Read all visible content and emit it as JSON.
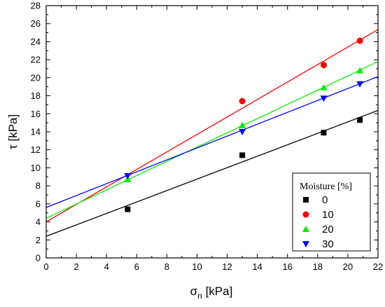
{
  "chart_data": {
    "type": "scatter",
    "xlabel": {
      "main": "σ",
      "sub": "n",
      "unit": " [kPa]"
    },
    "ylabel": "τ [kPa]",
    "xlim": [
      0,
      22
    ],
    "ylim": [
      0,
      28
    ],
    "xticks": [
      0,
      2,
      4,
      6,
      8,
      10,
      12,
      14,
      16,
      18,
      20,
      22
    ],
    "yticks": [
      0,
      2,
      4,
      6,
      8,
      10,
      12,
      14,
      16,
      18,
      20,
      22,
      24,
      26,
      28
    ],
    "grid": false,
    "legend": {
      "title": "Moisture [%]",
      "placement": "bottom-right"
    },
    "series": [
      {
        "name": "0",
        "color": "#000000",
        "marker": "square",
        "x": [
          5.4,
          13.0,
          18.4,
          20.8
        ],
        "y": [
          5.4,
          11.4,
          13.9,
          15.3
        ],
        "fit": {
          "intercept": 2.4,
          "slope": 0.635
        }
      },
      {
        "name": "10",
        "color": "#ff0000",
        "marker": "circle",
        "x": [
          13.0,
          18.4,
          20.8
        ],
        "y": [
          17.4,
          21.4,
          24.1
        ],
        "fit": {
          "intercept": 4.0,
          "slope": 0.97
        }
      },
      {
        "name": "20",
        "color": "#00ee00",
        "marker": "triangle-up",
        "x": [
          5.4,
          13.0,
          18.4,
          20.8
        ],
        "y": [
          8.7,
          14.7,
          18.9,
          20.8
        ],
        "fit": {
          "intercept": 4.4,
          "slope": 0.79
        }
      },
      {
        "name": "30",
        "color": "#0000ff",
        "marker": "triangle-down",
        "x": [
          5.4,
          13.0,
          18.4,
          20.8
        ],
        "y": [
          9.1,
          14.0,
          17.7,
          19.3
        ],
        "fit": {
          "intercept": 5.6,
          "slope": 0.66
        }
      }
    ]
  }
}
